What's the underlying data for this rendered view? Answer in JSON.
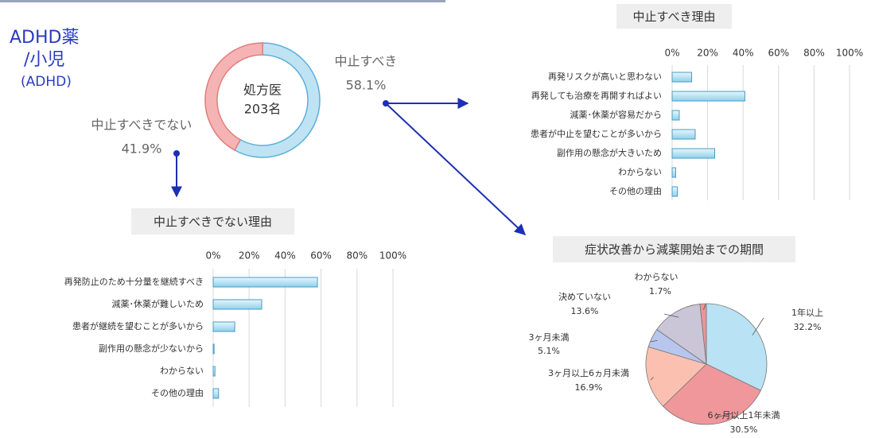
{
  "heading": [
    "ADHD薬",
    "/小児",
    "(ADHD)"
  ],
  "chart_data": [
    {
      "type": "donut",
      "center_text": [
        "処方医",
        "203名"
      ],
      "series": [
        {
          "name": "中止すべき",
          "color": "#bfe3f3",
          "values": [
            58.1
          ],
          "value_labels": [
            "58.1%"
          ]
        },
        {
          "name": "中止すべきでない",
          "color": "#f6b3b3",
          "values": [
            41.9
          ],
          "value_labels": [
            "41.9%"
          ]
        }
      ]
    },
    {
      "type": "hbar",
      "title": "中止すべき理由",
      "color": "#a8dcf0",
      "categories": [
        "再発リスクが高いと思わない",
        "再発しても治療を再開すればよい",
        "減薬･休薬が容易だから",
        "患者が中止を望むことが多いから",
        "副作用の懸念が大きいため",
        "わからない",
        "その他の理由"
      ],
      "values": [
        11,
        41,
        4,
        13,
        24,
        2,
        3
      ],
      "xlim": [
        0,
        100
      ],
      "xticks": [
        {
          "value": 0,
          "label": "0%"
        },
        {
          "value": 20,
          "label": "20%"
        },
        {
          "value": 40,
          "label": "40%"
        },
        {
          "value": 60,
          "label": "60%"
        },
        {
          "value": 80,
          "label": "80%"
        },
        {
          "value": 100,
          "label": "100%"
        }
      ],
      "grid": true
    },
    {
      "type": "hbar",
      "title": "中止すべきでない理由",
      "color": "#a8dcf0",
      "categories": [
        "再発防止のため十分量を継続すべき",
        "減薬･休薬が難しいため",
        "患者が継続を望むことが多いから",
        "副作用の懸念が少ないから",
        "わからない",
        "その他の理由"
      ],
      "values": [
        58,
        27,
        12,
        0.5,
        1,
        3
      ],
      "xlim": [
        0,
        100
      ],
      "xticks": [
        {
          "value": 0,
          "label": "0%"
        },
        {
          "value": 20,
          "label": "20%"
        },
        {
          "value": 40,
          "label": "40%"
        },
        {
          "value": 60,
          "label": "60%"
        },
        {
          "value": 80,
          "label": "80%"
        },
        {
          "value": 100,
          "label": "100%"
        }
      ],
      "grid": true
    },
    {
      "type": "pie",
      "title": "症状改善から減薬開始までの期間",
      "categories": [
        "1年以上",
        "6ヶ月以上1年未満",
        "3ヶ月以上6ヵ月未満",
        "3ヶ月未満",
        "決めていない",
        "わからない"
      ],
      "values": [
        32.2,
        30.5,
        16.9,
        5.1,
        13.6,
        1.7
      ],
      "value_labels": [
        "32.2%",
        "30.5%",
        "16.9%",
        "5.1%",
        "13.6%",
        "1.7%"
      ],
      "colors": [
        "#b9e2f4",
        "#f0979c",
        "#fbc0b0",
        "#b8c6ee",
        "#cbc5d8",
        "#e8959a"
      ]
    }
  ]
}
